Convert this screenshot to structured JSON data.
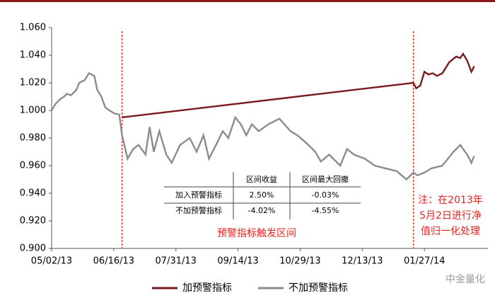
{
  "chart_data": {
    "type": "line",
    "xlim": [
      "2013-05-02",
      "2014-03-14"
    ],
    "xticks": [
      {
        "value": "2013-05-02",
        "label": "05/02/13"
      },
      {
        "value": "2013-06-16",
        "label": "06/16/13"
      },
      {
        "value": "2013-07-31",
        "label": "07/31/13"
      },
      {
        "value": "2013-09-14",
        "label": "09/14/13"
      },
      {
        "value": "2013-10-29",
        "label": "10/29/13"
      },
      {
        "value": "2013-12-13",
        "label": "12/13/13"
      },
      {
        "value": "2014-01-27",
        "label": "01/27/14"
      }
    ],
    "ylim": [
      0.9,
      1.06
    ],
    "yticks": [
      {
        "value": 0.9,
        "label": "0.900"
      },
      {
        "value": 0.92,
        "label": "0.920"
      },
      {
        "value": 0.94,
        "label": "0.940"
      },
      {
        "value": 0.96,
        "label": "0.960"
      },
      {
        "value": 0.98,
        "label": "0.980"
      },
      {
        "value": 1.0,
        "label": "1.000"
      },
      {
        "value": 1.02,
        "label": "1.020"
      },
      {
        "value": 1.04,
        "label": "1.040"
      },
      {
        "value": 1.06,
        "label": "1.060"
      }
    ],
    "legend": "bottom",
    "series": [
      {
        "name": "加预警指标",
        "color": "#7b1a1f",
        "x": [
          "2013-06-22",
          "2014-01-19",
          "2014-01-21",
          "2014-01-24",
          "2014-01-27",
          "2014-01-30",
          "2014-02-02",
          "2014-02-05",
          "2014-02-09",
          "2014-02-14",
          "2014-02-19",
          "2014-02-22",
          "2014-02-24",
          "2014-02-27",
          "2014-03-02",
          "2014-03-04"
        ],
        "values": [
          0.995,
          1.02,
          1.016,
          1.018,
          1.028,
          1.026,
          1.027,
          1.025,
          1.027,
          1.035,
          1.039,
          1.038,
          1.041,
          1.036,
          1.028,
          1.032
        ]
      },
      {
        "name": "不加预警指标",
        "color": "#8c8c8c",
        "x": [
          "2013-05-02",
          "2013-05-05",
          "2013-05-08",
          "2013-05-11",
          "2013-05-13",
          "2013-05-16",
          "2013-05-20",
          "2013-05-22",
          "2013-05-26",
          "2013-05-29",
          "2013-06-02",
          "2013-06-04",
          "2013-06-07",
          "2013-06-10",
          "2013-06-16",
          "2013-06-20",
          "2013-06-22",
          "2013-06-26",
          "2013-06-30",
          "2013-07-04",
          "2013-07-09",
          "2013-07-12",
          "2013-07-15",
          "2013-07-19",
          "2013-07-24",
          "2013-07-28",
          "2013-08-03",
          "2013-08-10",
          "2013-08-15",
          "2013-08-20",
          "2013-08-24",
          "2013-08-29",
          "2013-09-03",
          "2013-09-07",
          "2013-09-12",
          "2013-09-16",
          "2013-09-20",
          "2013-09-24",
          "2013-09-29",
          "2013-10-06",
          "2013-10-14",
          "2013-10-22",
          "2013-10-27",
          "2013-11-04",
          "2013-11-09",
          "2013-11-13",
          "2013-11-19",
          "2013-11-27",
          "2013-12-02",
          "2013-12-07",
          "2013-12-15",
          "2013-12-22",
          "2013-12-30",
          "2014-01-07",
          "2014-01-14",
          "2014-01-19",
          "2014-01-22",
          "2014-01-27",
          "2014-02-01",
          "2014-02-09",
          "2014-02-17",
          "2014-02-22",
          "2014-02-24",
          "2014-02-27",
          "2014-03-02",
          "2014-03-04"
        ],
        "values": [
          1.0,
          1.005,
          1.008,
          1.01,
          1.012,
          1.011,
          1.015,
          1.02,
          1.022,
          1.027,
          1.025,
          1.015,
          1.01,
          1.002,
          0.998,
          0.997,
          0.982,
          0.965,
          0.972,
          0.975,
          0.968,
          0.988,
          0.97,
          0.985,
          0.968,
          0.962,
          0.975,
          0.98,
          0.97,
          0.982,
          0.965,
          0.975,
          0.985,
          0.98,
          0.995,
          0.99,
          0.982,
          0.99,
          0.985,
          0.99,
          0.994,
          0.985,
          0.982,
          0.975,
          0.97,
          0.963,
          0.968,
          0.96,
          0.972,
          0.968,
          0.965,
          0.96,
          0.958,
          0.956,
          0.95,
          0.955,
          0.953,
          0.955,
          0.958,
          0.96,
          0.97,
          0.975,
          0.972,
          0.968,
          0.962,
          0.967
        ]
      }
    ],
    "vlines": [
      "2013-06-22",
      "2014-01-19"
    ],
    "annotation": "预警指标触发区间",
    "note": [
      "注：在2013年",
      "5月2日进行净",
      "值归一化处理"
    ],
    "table": {
      "header": [
        "区间收益",
        "区间最大回撤"
      ],
      "rows": [
        [
          "加入预警指标",
          "2.50%",
          "-0.03%"
        ],
        [
          "不加预警指标",
          "-4.02%",
          "-4.55%"
        ]
      ]
    },
    "watermark": "中金量化"
  }
}
